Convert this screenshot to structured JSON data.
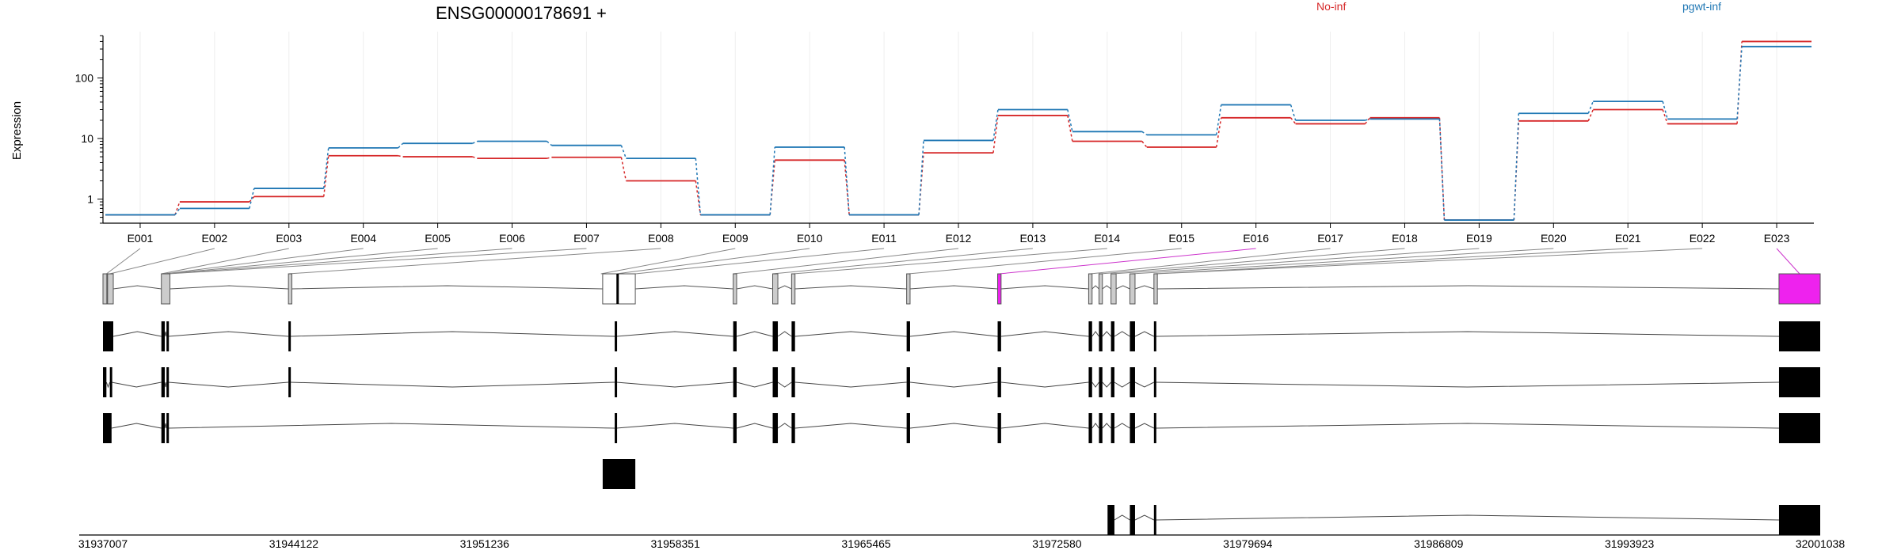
{
  "chart_data": {
    "type": "line",
    "title": "ENSG00000178691 +",
    "ylabel": "Expression",
    "yscale": "log",
    "ylim": [
      0.4,
      500
    ],
    "yticks": [
      1,
      10,
      100
    ],
    "grid": true,
    "legend_position": "top-right",
    "categories": [
      "E001",
      "E002",
      "E003",
      "E004",
      "E005",
      "E006",
      "E007",
      "E008",
      "E009",
      "E010",
      "E011",
      "E012",
      "E013",
      "E014",
      "E015",
      "E016",
      "E017",
      "E018",
      "E019",
      "E020",
      "E021",
      "E022",
      "E023"
    ],
    "series": [
      {
        "name": "No-inf",
        "color": "#d62728",
        "values": [
          0.55,
          0.9,
          1.1,
          5.2,
          5.0,
          4.7,
          4.9,
          2.0,
          0.55,
          4.4,
          0.55,
          5.8,
          24,
          9.0,
          7.2,
          22,
          17.5,
          22,
          0.45,
          19.5,
          30,
          17.5,
          400
        ]
      },
      {
        "name": "pgwt-inf",
        "color": "#1f77b4",
        "values": [
          0.55,
          0.7,
          1.5,
          7.0,
          8.3,
          9.0,
          7.7,
          4.7,
          0.55,
          7.2,
          0.55,
          9.3,
          30,
          13,
          11.5,
          36,
          20,
          21,
          0.45,
          26,
          41,
          21,
          330
        ]
      }
    ],
    "genome_axis_ticks": [
      "31937007",
      "31944122",
      "31951236",
      "31958351",
      "31965465",
      "31972580",
      "31979694",
      "31986809",
      "31993923",
      "32001038"
    ],
    "highlighted_exon": "E023"
  }
}
